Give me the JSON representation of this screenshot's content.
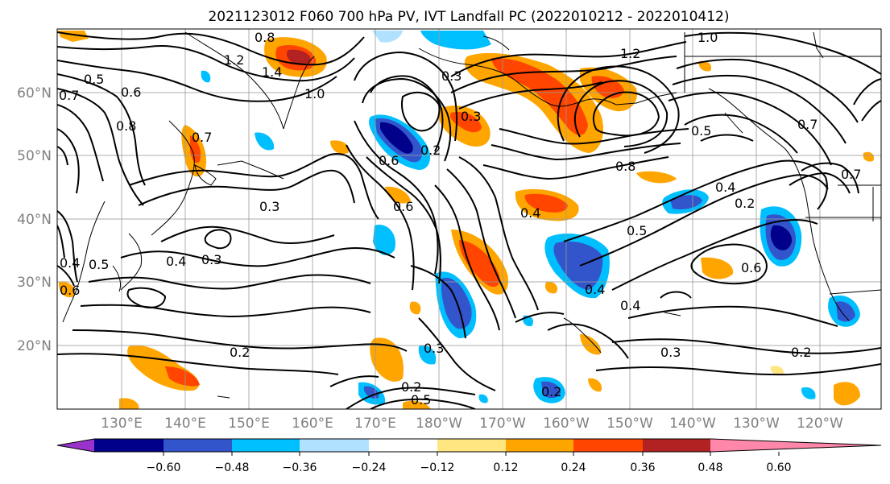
{
  "title": "2021123012 F060 700 hPa PV, IVT Landfall PC (2022010212 - 2022010412)",
  "lat_labels": [
    "60°N",
    "50°N",
    "40°N",
    "30°N",
    "20°N"
  ],
  "lon_labels": [
    "130°E",
    "140°E",
    "150°E",
    "160°E",
    "170°E",
    "180°W",
    "170°W",
    "160°W",
    "150°W",
    "140°W",
    "130°W",
    "120°W"
  ],
  "colorbar": {
    "tick_labels": [
      "−0.60",
      "−0.48",
      "−0.36",
      "−0.24",
      "−0.12",
      "0.12",
      "0.24",
      "0.36",
      "0.48",
      "0.60"
    ],
    "colors": [
      "#9933cc",
      "#00008b",
      "#3355cc",
      "#00bfff",
      "#b0e2ff",
      "#ffffff",
      "#ffe680",
      "#ffa500",
      "#ff4500",
      "#b22222",
      "#ff88aa"
    ]
  },
  "contour_labels": [
    {
      "text": "0.8"
    },
    {
      "text": "1.2"
    },
    {
      "text": "1.4"
    },
    {
      "text": "0.5"
    },
    {
      "text": "0.6"
    },
    {
      "text": "0.7"
    },
    {
      "text": "1.0"
    },
    {
      "text": "0.8"
    },
    {
      "text": "0.3"
    },
    {
      "text": "0.3"
    },
    {
      "text": "0.2"
    },
    {
      "text": "0.6"
    },
    {
      "text": "0.6"
    },
    {
      "text": "0.3"
    },
    {
      "text": "0.4"
    },
    {
      "text": "0.3"
    },
    {
      "text": "0.4"
    },
    {
      "text": "0.8"
    },
    {
      "text": "1.2"
    },
    {
      "text": "1.0"
    },
    {
      "text": "0.5"
    },
    {
      "text": "0.7"
    },
    {
      "text": "0.4"
    },
    {
      "text": "0.2"
    },
    {
      "text": "0.5"
    },
    {
      "text": "0.6"
    },
    {
      "text": "0.4"
    },
    {
      "text": "0.4"
    },
    {
      "text": "0.3"
    },
    {
      "text": "0.2"
    },
    {
      "text": "0.2"
    },
    {
      "text": "0.3"
    },
    {
      "text": "0.2"
    },
    {
      "text": "0.5"
    },
    {
      "text": "0.2"
    },
    {
      "text": "0.5"
    },
    {
      "text": "0.4"
    },
    {
      "text": "0.6"
    },
    {
      "text": "0.7"
    },
    {
      "text": "0.7"
    }
  ]
}
